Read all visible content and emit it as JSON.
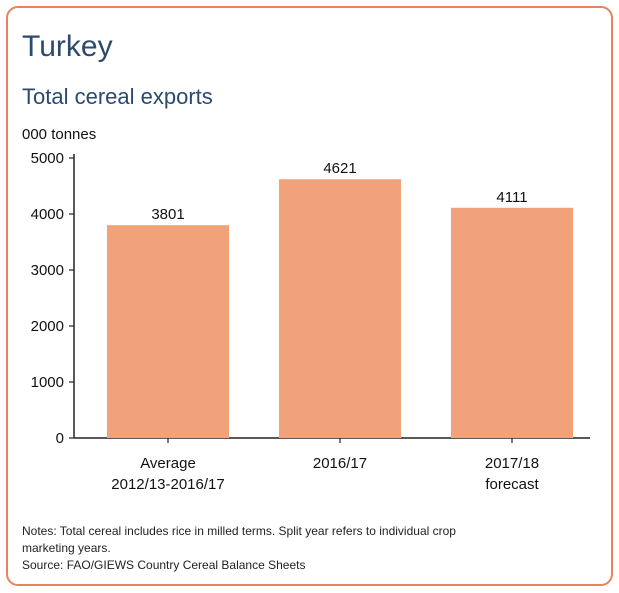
{
  "chart_data": {
    "type": "bar",
    "title": "Turkey",
    "subtitle": "Total cereal exports",
    "ylabel": "000 tonnes",
    "xlabel": "",
    "ylim": [
      0,
      5000
    ],
    "yticks": [
      0,
      1000,
      2000,
      3000,
      4000,
      5000
    ],
    "grid": false,
    "categories": [
      [
        "Average",
        "2012/13-2016/17"
      ],
      [
        "2016/17"
      ],
      [
        "2017/18",
        "forecast"
      ]
    ],
    "values": [
      3801,
      4621,
      4111
    ],
    "bar_color": "#f2a27a"
  },
  "notes": {
    "line1": "Notes: Total cereal includes rice in milled terms. Split year refers to individual crop",
    "line2": "marketing years.",
    "source": "Source: FAO/GIEWS Country Cereal Balance Sheets"
  },
  "colors": {
    "border": "#e9825a",
    "title": "#2b4a6e"
  }
}
